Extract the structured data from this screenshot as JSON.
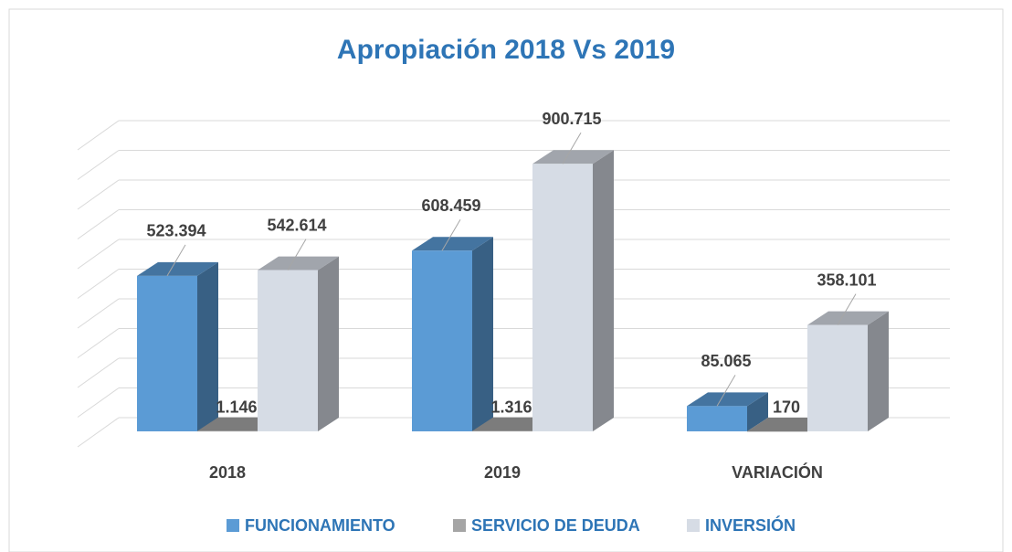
{
  "chart_data": {
    "type": "bar3d",
    "title": "Apropiación 2018 Vs 2019",
    "categories": [
      "2018",
      "2019",
      "VARIACIÓN"
    ],
    "series": [
      {
        "name": "FUNCIONAMIENTO",
        "color": "#5b9bd5",
        "values": [
          523394,
          608459,
          85065
        ],
        "value_labels": [
          "523.394",
          "608.459",
          "85.065"
        ]
      },
      {
        "name": "SERVICIO DE DEUDA",
        "color": "#a5a5a5",
        "values": [
          1146,
          1316,
          170
        ],
        "value_labels": [
          "1.146",
          "1.316",
          "170"
        ]
      },
      {
        "name": "INVERSIÓN",
        "color": "#d6dce5",
        "values": [
          542614,
          900715,
          358101
        ],
        "value_labels": [
          "542.614",
          "900.715",
          "358.101"
        ]
      }
    ],
    "ylim": [
      0,
      1000000
    ],
    "yticks": [
      0,
      100000,
      200000,
      300000,
      400000,
      500000,
      600000,
      700000,
      800000,
      900000,
      1000000
    ],
    "grid": true,
    "legend": "bottom"
  }
}
